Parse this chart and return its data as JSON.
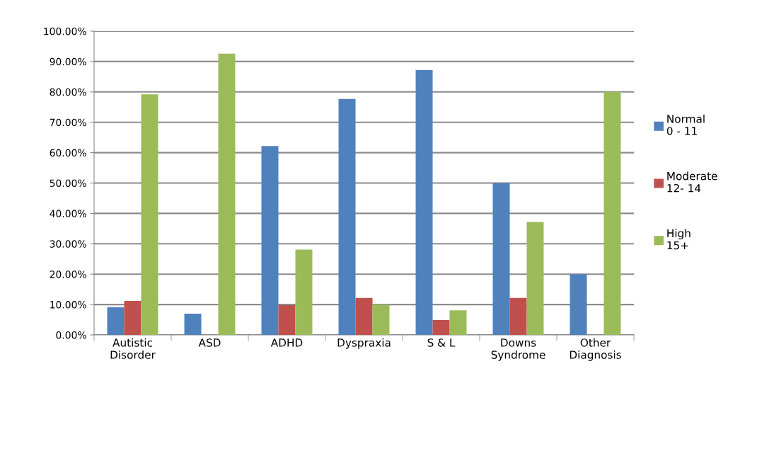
{
  "chart_data": {
    "type": "bar",
    "categories": [
      "Autistic\nDisorder",
      "ASD",
      "ADHD",
      "Dyspraxia",
      "S & L",
      "Downs\nSyndrome",
      "Other\nDiagnosis"
    ],
    "series": [
      {
        "name": "Normal\n0 - 11",
        "color": "#4f81bd",
        "values": [
          9.1,
          7.0,
          62.2,
          77.7,
          87.2,
          50.0,
          20.0
        ]
      },
      {
        "name": "Moderate\n12- 14",
        "color": "#c0504d",
        "values": [
          11.2,
          0,
          9.8,
          12.2,
          4.9,
          12.2,
          0
        ]
      },
      {
        "name": "High\n15+",
        "color": "#9bbb59",
        "values": [
          79.2,
          92.6,
          28.1,
          10.0,
          8.1,
          37.2,
          80.0
        ]
      }
    ],
    "ylim": [
      0,
      100
    ],
    "yticks": [
      {
        "value": 0,
        "label": "0.00%"
      },
      {
        "value": 10,
        "label": "10.00%"
      },
      {
        "value": 20,
        "label": "20.00%"
      },
      {
        "value": 30,
        "label": "30.00%"
      },
      {
        "value": 40,
        "label": "40.00%"
      },
      {
        "value": 50,
        "label": "50.00%"
      },
      {
        "value": 60,
        "label": "60.00%"
      },
      {
        "value": 70,
        "label": "70.00%"
      },
      {
        "value": 80,
        "label": "80.00%"
      },
      {
        "value": 90,
        "label": "90.00%"
      },
      {
        "value": 100,
        "label": "100.00%"
      }
    ],
    "grid": "y",
    "legend": "right"
  }
}
